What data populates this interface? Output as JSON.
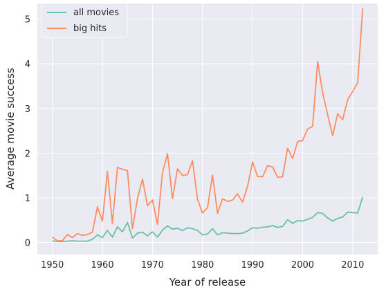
{
  "chart_data": {
    "type": "line",
    "xlabel": "Year of release",
    "ylabel": "Average movie success",
    "xlim": [
      1947,
      2015
    ],
    "ylim": [
      -0.27,
      5.35
    ],
    "xticks": [
      1950,
      1960,
      1970,
      1980,
      1990,
      2000,
      2010
    ],
    "yticks": [
      0,
      1,
      2,
      3,
      4,
      5
    ],
    "grid": true,
    "legend_position": "top-left",
    "background": "#eaeaf2",
    "x": [
      1950,
      1951,
      1952,
      1953,
      1954,
      1955,
      1956,
      1957,
      1958,
      1959,
      1960,
      1961,
      1962,
      1963,
      1964,
      1965,
      1966,
      1967,
      1968,
      1969,
      1970,
      1971,
      1972,
      1973,
      1974,
      1975,
      1976,
      1977,
      1978,
      1979,
      1980,
      1981,
      1982,
      1983,
      1984,
      1985,
      1986,
      1987,
      1988,
      1989,
      1990,
      1991,
      1992,
      1993,
      1994,
      1995,
      1996,
      1997,
      1998,
      1999,
      2000,
      2001,
      2002,
      2003,
      2004,
      2005,
      2006,
      2007,
      2008,
      2009,
      2010,
      2011,
      2012
    ],
    "series": [
      {
        "name": "all movies",
        "color": "#66c2a5",
        "values": [
          0.04,
          0.02,
          0.02,
          0.03,
          0.04,
          0.03,
          0.03,
          0.03,
          0.07,
          0.17,
          0.11,
          0.27,
          0.12,
          0.35,
          0.24,
          0.45,
          0.1,
          0.21,
          0.23,
          0.15,
          0.24,
          0.12,
          0.28,
          0.37,
          0.3,
          0.32,
          0.27,
          0.33,
          0.31,
          0.27,
          0.17,
          0.19,
          0.31,
          0.17,
          0.22,
          0.21,
          0.2,
          0.2,
          0.21,
          0.26,
          0.33,
          0.32,
          0.34,
          0.35,
          0.38,
          0.34,
          0.36,
          0.51,
          0.43,
          0.49,
          0.48,
          0.52,
          0.56,
          0.67,
          0.65,
          0.55,
          0.48,
          0.54,
          0.57,
          0.68,
          0.67,
          0.66,
          1.02
        ]
      },
      {
        "name": "big hits",
        "color": "#fc8d62",
        "values": [
          0.12,
          0.04,
          0.04,
          0.18,
          0.11,
          0.2,
          0.16,
          0.18,
          0.23,
          0.8,
          0.48,
          1.59,
          0.43,
          1.68,
          1.64,
          1.61,
          0.31,
          0.98,
          1.42,
          0.82,
          0.95,
          0.4,
          1.56,
          1.99,
          0.98,
          1.65,
          1.5,
          1.52,
          1.83,
          0.97,
          0.66,
          0.78,
          1.51,
          0.65,
          0.98,
          0.92,
          0.95,
          1.09,
          0.9,
          1.26,
          1.8,
          1.48,
          1.47,
          1.72,
          1.69,
          1.46,
          1.47,
          2.11,
          1.88,
          2.26,
          2.28,
          2.54,
          2.6,
          4.05,
          3.35,
          2.86,
          2.39,
          2.88,
          2.75,
          3.2,
          3.38,
          3.58,
          5.24
        ]
      }
    ]
  }
}
